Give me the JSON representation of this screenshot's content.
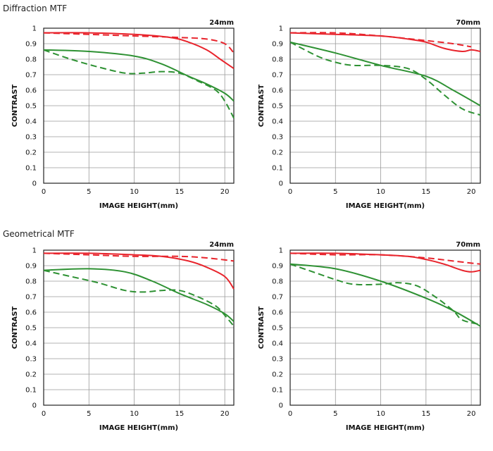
{
  "sections": {
    "diffraction_title": "Diffraction MTF",
    "geometrical_title": "Geometrical MTF"
  },
  "colors": {
    "red": "#e8242c",
    "green": "#2e9133",
    "grid": "#9a9a9a",
    "frame": "#222222"
  },
  "chart_data": [
    {
      "type": "line",
      "section": "Diffraction MTF",
      "title": "24mm",
      "xlabel": "IMAGE HEIGHT(mm)",
      "ylabel": "CONTRAST",
      "xlim": [
        0,
        21
      ],
      "ylim": [
        0,
        1
      ],
      "x_ticks": [
        "0",
        "5",
        "10",
        "15",
        "20"
      ],
      "y_ticks": [
        "0",
        "0.1",
        "0.2",
        "0.3",
        "0.4",
        "0.5",
        "0.6",
        "0.7",
        "0.8",
        "0.9",
        "1"
      ],
      "grid": true,
      "series": [
        {
          "color": "red",
          "dash": false,
          "points": [
            [
              0,
              0.97
            ],
            [
              5,
              0.97
            ],
            [
              10,
              0.96
            ],
            [
              14,
              0.94
            ],
            [
              16,
              0.91
            ],
            [
              18,
              0.86
            ],
            [
              19.5,
              0.8
            ],
            [
              21,
              0.74
            ]
          ]
        },
        {
          "color": "red",
          "dash": true,
          "points": [
            [
              0,
              0.97
            ],
            [
              5,
              0.96
            ],
            [
              10,
              0.95
            ],
            [
              15,
              0.94
            ],
            [
              18,
              0.93
            ],
            [
              20,
              0.9
            ],
            [
              21,
              0.84
            ]
          ]
        },
        {
          "color": "green",
          "dash": false,
          "points": [
            [
              0,
              0.86
            ],
            [
              5,
              0.85
            ],
            [
              10,
              0.82
            ],
            [
              13,
              0.77
            ],
            [
              16,
              0.69
            ],
            [
              18,
              0.64
            ],
            [
              20,
              0.58
            ],
            [
              21,
              0.53
            ]
          ]
        },
        {
          "color": "green",
          "dash": true,
          "points": [
            [
              0,
              0.86
            ],
            [
              3,
              0.8
            ],
            [
              6,
              0.75
            ],
            [
              9,
              0.71
            ],
            [
              11,
              0.71
            ],
            [
              13,
              0.72
            ],
            [
              15,
              0.71
            ],
            [
              17,
              0.66
            ],
            [
              19,
              0.6
            ],
            [
              20,
              0.53
            ],
            [
              21,
              0.42
            ]
          ]
        }
      ]
    },
    {
      "type": "line",
      "section": "Diffraction MTF",
      "title": "70mm",
      "xlabel": "IMAGE HEIGHT(mm)",
      "ylabel": "CONTRAST",
      "xlim": [
        0,
        21
      ],
      "ylim": [
        0,
        1
      ],
      "x_ticks": [
        "0",
        "5",
        "10",
        "15",
        "20"
      ],
      "y_ticks": [
        "0",
        "0.1",
        "0.2",
        "0.3",
        "0.4",
        "0.5",
        "0.6",
        "0.7",
        "0.8",
        "0.9",
        "1"
      ],
      "grid": true,
      "series": [
        {
          "color": "red",
          "dash": false,
          "points": [
            [
              0,
              0.97
            ],
            [
              5,
              0.96
            ],
            [
              10,
              0.95
            ],
            [
              13,
              0.93
            ],
            [
              15,
              0.91
            ],
            [
              17,
              0.87
            ],
            [
              19,
              0.85
            ],
            [
              20,
              0.86
            ],
            [
              21,
              0.85
            ]
          ]
        },
        {
          "color": "red",
          "dash": true,
          "points": [
            [
              0,
              0.97
            ],
            [
              5,
              0.97
            ],
            [
              10,
              0.95
            ],
            [
              15,
              0.92
            ],
            [
              18,
              0.9
            ],
            [
              20,
              0.88
            ]
          ]
        },
        {
          "color": "green",
          "dash": false,
          "points": [
            [
              0,
              0.91
            ],
            [
              5,
              0.84
            ],
            [
              10,
              0.76
            ],
            [
              15,
              0.69
            ],
            [
              18,
              0.6
            ],
            [
              21,
              0.5
            ]
          ]
        },
        {
          "color": "green",
          "dash": true,
          "points": [
            [
              0,
              0.91
            ],
            [
              3,
              0.82
            ],
            [
              5,
              0.78
            ],
            [
              7,
              0.76
            ],
            [
              10,
              0.76
            ],
            [
              13,
              0.74
            ],
            [
              15,
              0.67
            ],
            [
              17,
              0.57
            ],
            [
              19,
              0.48
            ],
            [
              21,
              0.44
            ]
          ]
        }
      ]
    },
    {
      "type": "line",
      "section": "Geometrical MTF",
      "title": "24mm",
      "xlabel": "IMAGE HEIGHT(mm)",
      "ylabel": "CONTRAST",
      "xlim": [
        0,
        21
      ],
      "ylim": [
        0,
        1
      ],
      "x_ticks": [
        "0",
        "5",
        "10",
        "15",
        "20"
      ],
      "y_ticks": [
        "0",
        "0.1",
        "0.2",
        "0.3",
        "0.4",
        "0.5",
        "0.6",
        "0.7",
        "0.8",
        "0.9",
        "1"
      ],
      "grid": true,
      "series": [
        {
          "color": "red",
          "dash": false,
          "points": [
            [
              0,
              0.98
            ],
            [
              5,
              0.98
            ],
            [
              10,
              0.97
            ],
            [
              13,
              0.96
            ],
            [
              16,
              0.93
            ],
            [
              18,
              0.89
            ],
            [
              20,
              0.83
            ],
            [
              21,
              0.75
            ]
          ]
        },
        {
          "color": "red",
          "dash": true,
          "points": [
            [
              0,
              0.98
            ],
            [
              5,
              0.97
            ],
            [
              10,
              0.96
            ],
            [
              15,
              0.96
            ],
            [
              18,
              0.95
            ],
            [
              21,
              0.93
            ]
          ]
        },
        {
          "color": "green",
          "dash": false,
          "points": [
            [
              0,
              0.87
            ],
            [
              5,
              0.88
            ],
            [
              9,
              0.86
            ],
            [
              12,
              0.8
            ],
            [
              15,
              0.72
            ],
            [
              18,
              0.65
            ],
            [
              20,
              0.59
            ],
            [
              21,
              0.54
            ]
          ]
        },
        {
          "color": "green",
          "dash": true,
          "points": [
            [
              0,
              0.87
            ],
            [
              3,
              0.83
            ],
            [
              6,
              0.79
            ],
            [
              9,
              0.74
            ],
            [
              11,
              0.73
            ],
            [
              13,
              0.74
            ],
            [
              15,
              0.74
            ],
            [
              17,
              0.7
            ],
            [
              19,
              0.64
            ],
            [
              20,
              0.58
            ],
            [
              21,
              0.51
            ]
          ]
        }
      ]
    },
    {
      "type": "line",
      "section": "Geometrical MTF",
      "title": "70mm",
      "xlabel": "IMAGE HEIGHT(mm)",
      "ylabel": "CONTRAST",
      "xlim": [
        0,
        21
      ],
      "ylim": [
        0,
        1
      ],
      "x_ticks": [
        "0",
        "5",
        "10",
        "15",
        "20"
      ],
      "y_ticks": [
        "0",
        "0.1",
        "0.2",
        "0.3",
        "0.4",
        "0.5",
        "0.6",
        "0.7",
        "0.8",
        "0.9",
        "1"
      ],
      "grid": true,
      "series": [
        {
          "color": "red",
          "dash": false,
          "points": [
            [
              0,
              0.98
            ],
            [
              5,
              0.98
            ],
            [
              10,
              0.97
            ],
            [
              13,
              0.96
            ],
            [
              15,
              0.94
            ],
            [
              17,
              0.91
            ],
            [
              19,
              0.87
            ],
            [
              20,
              0.86
            ],
            [
              21,
              0.87
            ]
          ]
        },
        {
          "color": "red",
          "dash": true,
          "points": [
            [
              0,
              0.98
            ],
            [
              5,
              0.97
            ],
            [
              10,
              0.97
            ],
            [
              15,
              0.95
            ],
            [
              18,
              0.93
            ],
            [
              21,
              0.91
            ]
          ]
        },
        {
          "color": "green",
          "dash": false,
          "points": [
            [
              0,
              0.91
            ],
            [
              5,
              0.88
            ],
            [
              10,
              0.8
            ],
            [
              15,
              0.69
            ],
            [
              18,
              0.61
            ],
            [
              21,
              0.51
            ]
          ]
        },
        {
          "color": "green",
          "dash": true,
          "points": [
            [
              0,
              0.91
            ],
            [
              3,
              0.85
            ],
            [
              5,
              0.81
            ],
            [
              7,
              0.78
            ],
            [
              10,
              0.78
            ],
            [
              12,
              0.79
            ],
            [
              14,
              0.77
            ],
            [
              16,
              0.7
            ],
            [
              18,
              0.61
            ],
            [
              19,
              0.55
            ],
            [
              21,
              0.52
            ]
          ]
        }
      ]
    }
  ]
}
